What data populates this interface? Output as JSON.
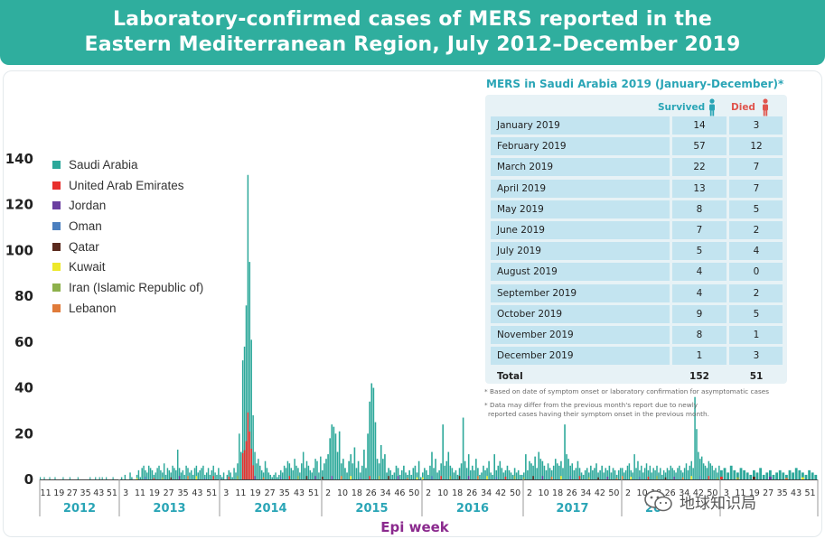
{
  "title": {
    "line1": "Laboratory-confirmed cases of MERS reported in the",
    "line2": "Eastern Mediterranean Region, July 2012–December 2019"
  },
  "colors": {
    "banner": "#2fae9e",
    "saudi": "#2ca89a",
    "uae": "#e8302d",
    "jordan": "#6b3fa0",
    "oman": "#4b7fbf",
    "qatar": "#5a2a1e",
    "kuwait": "#ede82a",
    "iran": "#8db14b",
    "lebanon": "#e07b3a",
    "year_label": "#2aa5b6",
    "axis_title": "#8b2a8e"
  },
  "chart_data": {
    "type": "bar",
    "stacked": true,
    "xlabel": "Epi week",
    "ylabel": "",
    "ylim": [
      0,
      140
    ],
    "yticks": [
      0,
      20,
      40,
      60,
      80,
      100,
      120,
      140
    ],
    "legend_position": "top-left",
    "series": [
      {
        "name": "Saudi Arabia",
        "color": "#2ca89a"
      },
      {
        "name": "United Arab Emirates",
        "color": "#e8302d"
      },
      {
        "name": "Jordan",
        "color": "#6b3fa0"
      },
      {
        "name": "Oman",
        "color": "#4b7fbf"
      },
      {
        "name": "Qatar",
        "color": "#5a2a1e"
      },
      {
        "name": "Kuwait",
        "color": "#ede82a"
      },
      {
        "name": "Iran (Islamic Republic of)",
        "color": "#8db14b"
      },
      {
        "name": "Lebanon",
        "color": "#e07b3a"
      }
    ],
    "years": [
      {
        "label": "2012",
        "ticks": [
          "11",
          "19",
          "27",
          "35",
          "43",
          "51"
        ]
      },
      {
        "label": "2013",
        "ticks": [
          "3",
          "11",
          "19",
          "27",
          "35",
          "43",
          "51"
        ]
      },
      {
        "label": "2014",
        "ticks": [
          "3",
          "11",
          "19",
          "27",
          "35",
          "43",
          "51"
        ]
      },
      {
        "label": "2015",
        "ticks": [
          "2",
          "10",
          "18",
          "26",
          "34",
          "46",
          "50"
        ]
      },
      {
        "label": "2016",
        "ticks": [
          "2",
          "10",
          "18",
          "26",
          "34",
          "42",
          "50"
        ]
      },
      {
        "label": "2017",
        "ticks": [
          "2",
          "10",
          "18",
          "26",
          "34",
          "42",
          "50"
        ]
      },
      {
        "label": "20",
        "ticks": [
          "2",
          "10",
          "18",
          "26",
          "34",
          "42",
          "50"
        ]
      },
      {
        "label": "",
        "ticks": [
          "3",
          "11",
          "19",
          "27",
          "35",
          "43",
          "51"
        ]
      }
    ],
    "weekly_totals": {
      "2012": [
        1,
        0,
        0,
        1,
        0,
        0,
        0,
        1,
        0,
        0,
        0,
        1,
        0,
        0,
        0,
        0,
        0,
        1,
        0,
        0,
        0,
        0,
        1,
        0,
        0,
        0,
        0,
        0,
        1,
        0,
        0,
        0,
        0,
        0,
        0,
        0,
        0,
        1,
        0,
        0,
        0,
        1,
        0,
        0,
        1,
        0,
        1,
        0,
        0,
        1,
        0,
        0,
        0,
        0,
        1,
        0,
        0,
        0,
        0
      ],
      "2013": [
        0,
        1,
        0,
        2,
        0,
        0,
        3,
        1,
        0,
        0,
        2,
        4,
        1,
        5,
        6,
        4,
        3,
        6,
        5,
        4,
        2,
        3,
        5,
        6,
        4,
        3,
        7,
        2,
        5,
        4,
        3,
        6,
        5,
        4,
        13,
        5,
        3,
        4,
        2,
        6,
        5,
        3,
        4,
        2,
        5,
        6,
        3,
        4,
        5,
        6,
        2,
        3,
        5,
        2,
        4,
        6,
        3,
        2,
        5
      ],
      "2014": [
        2,
        1,
        3,
        0,
        2,
        4,
        3,
        1,
        5,
        3,
        7,
        20,
        12,
        52,
        58,
        76,
        133,
        95,
        61,
        28,
        12,
        7,
        9,
        6,
        4,
        3,
        8,
        5,
        3,
        2,
        1,
        2,
        3,
        1,
        2,
        4,
        3,
        6,
        5,
        8,
        7,
        5,
        4,
        9,
        6,
        5,
        3,
        7,
        12,
        5,
        8,
        6,
        4,
        3,
        5,
        9,
        8,
        3,
        10
      ],
      "2015": [
        4,
        7,
        9,
        11,
        18,
        24,
        23,
        20,
        12,
        21,
        7,
        9,
        5,
        3,
        8,
        11,
        7,
        14,
        5,
        8,
        3,
        6,
        13,
        5,
        20,
        34,
        42,
        40,
        25,
        9,
        7,
        15,
        9,
        11,
        3,
        5,
        4,
        2,
        3,
        6,
        5,
        2,
        4,
        6,
        3,
        2,
        4,
        2,
        5,
        6,
        3,
        8,
        1
      ],
      "2016": [
        3,
        5,
        4,
        2,
        6,
        12,
        5,
        9,
        3,
        4,
        7,
        24,
        6,
        8,
        12,
        6,
        5,
        3,
        4,
        2,
        5,
        7,
        27,
        8,
        5,
        11,
        4,
        6,
        4,
        9,
        5,
        2,
        3,
        6,
        4,
        5,
        8,
        3,
        2,
        11,
        4,
        6,
        8,
        5,
        3,
        4,
        6,
        4,
        3,
        2,
        5,
        3,
        4,
        2,
        2
      ],
      "2017": [
        3,
        11,
        4,
        8,
        7,
        6,
        10,
        5,
        12,
        9,
        8,
        6,
        4,
        7,
        5,
        4,
        6,
        9,
        7,
        6,
        8,
        5,
        24,
        11,
        9,
        6,
        7,
        4,
        5,
        8,
        5,
        3,
        2,
        4,
        5,
        3,
        6,
        4,
        5,
        7,
        3,
        4,
        6,
        3,
        5,
        4,
        6,
        3,
        5,
        4,
        2,
        4,
        5
      ],
      "2018": [
        5,
        3,
        4,
        6,
        7,
        4,
        3,
        11,
        5,
        8,
        4,
        6,
        3,
        5,
        7,
        4,
        6,
        3,
        5,
        4,
        6,
        3,
        5,
        2,
        4,
        3,
        5,
        4,
        6,
        5,
        4,
        3,
        5,
        6,
        4,
        3,
        5,
        7,
        4,
        6,
        8,
        5,
        36,
        22,
        12,
        9,
        10,
        7,
        6,
        5,
        8,
        7,
        6,
        4,
        5,
        3,
        6
      ],
      "2019": [
        4,
        5,
        3,
        6,
        4,
        3,
        5,
        4,
        3,
        2,
        4,
        3,
        5,
        2,
        3,
        4,
        2,
        3,
        4,
        3,
        2,
        4,
        3,
        5,
        4,
        3,
        2,
        4,
        3,
        2
      ]
    }
  },
  "table": {
    "title": "MERS in Saudi Arabia 2019 (January-December)*",
    "survived_label": "Survived",
    "died_label": "Died",
    "rows": [
      {
        "month": "January 2019",
        "survived": "14",
        "died": "3"
      },
      {
        "month": "February 2019",
        "survived": "57",
        "died": "12"
      },
      {
        "month": "March 2019",
        "survived": "22",
        "died": "7"
      },
      {
        "month": "April 2019",
        "survived": "13",
        "died": "7"
      },
      {
        "month": "May 2019",
        "survived": "8",
        "died": "5"
      },
      {
        "month": "June 2019",
        "survived": "7",
        "died": "2"
      },
      {
        "month": "July 2019",
        "survived": "5",
        "died": "4"
      },
      {
        "month": "August 2019",
        "survived": "4",
        "died": "0"
      },
      {
        "month": "September 2019",
        "survived": "4",
        "died": "2"
      },
      {
        "month": "October 2019",
        "survived": "9",
        "died": "5"
      },
      {
        "month": "November 2019",
        "survived": "8",
        "died": "1"
      },
      {
        "month": "December 2019",
        "survived": "1",
        "died": "3"
      }
    ],
    "total": {
      "month": "Total",
      "survived": "152",
      "died": "51"
    },
    "footnote1": "* Based on date of symptom onset or laboratory confirmation for asymptomatic cases",
    "footnote2a": "* Data may differ from the previous month's report due to newly",
    "footnote2b": "reported cases having their symptom onset in the previous month."
  },
  "watermark": {
    "text": "地球知识局",
    "icon": "wechat-icon"
  }
}
